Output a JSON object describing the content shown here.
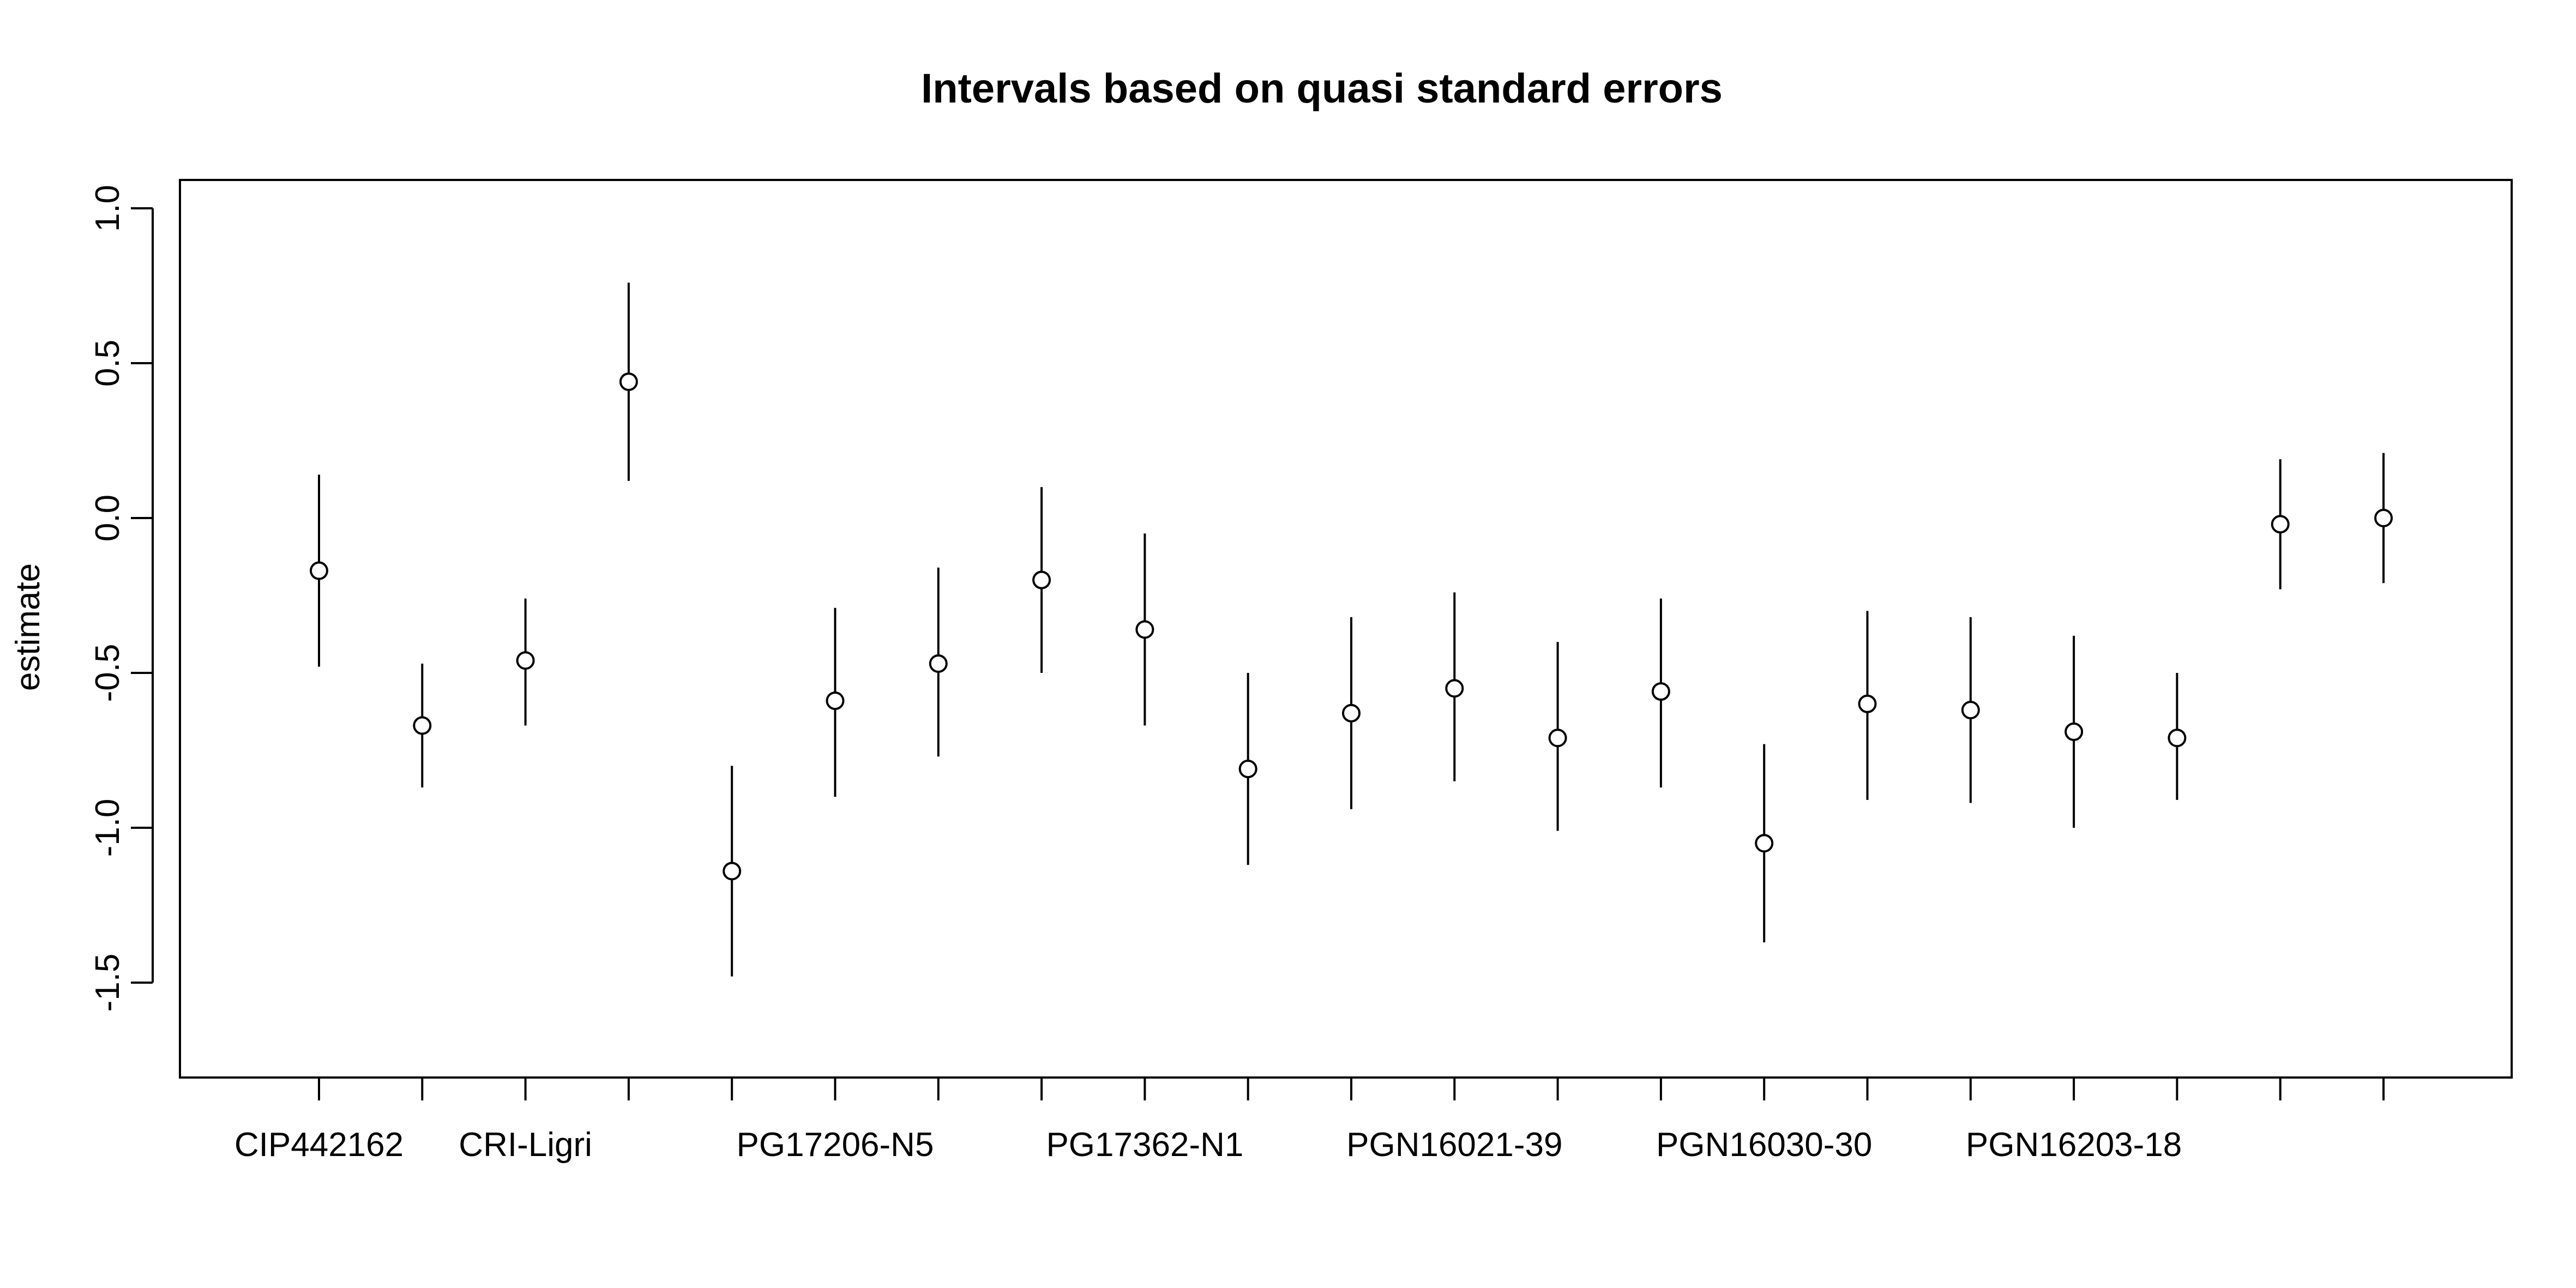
{
  "chart_data": {
    "type": "scatter",
    "title": "Intervals based on quasi standard errors",
    "xlabel": "",
    "ylabel": "estimate",
    "ylim": [
      -1.8,
      1.1
    ],
    "yticks": [
      1.0,
      0.5,
      0.0,
      -0.5,
      -1.0,
      -1.5
    ],
    "ytick_labels": [
      "1.0",
      "0.5",
      "0.0",
      "-0.5",
      "-1.0",
      "-1.5"
    ],
    "grid": false,
    "legend": "none",
    "categories": [
      "CIP442162",
      "",
      "CRI-Ligri",
      "",
      "",
      "PG17206-N5",
      "",
      "",
      "PG17362-N1",
      "",
      "",
      "PGN16021-39",
      "",
      "",
      "PGN16030-30",
      "",
      "",
      "PGN16203-18",
      "",
      "",
      ""
    ],
    "series": [
      {
        "estimate": [
          -0.17,
          -0.67,
          -0.46,
          0.44,
          -1.14,
          -0.59,
          -0.47,
          -0.2,
          -0.36,
          -0.81,
          -0.63,
          -0.55,
          -0.71,
          -0.56,
          -1.05,
          -0.6,
          -0.62,
          -0.69,
          -0.71,
          -0.02,
          0.0
        ],
        "lower": [
          -0.48,
          -0.87,
          -0.67,
          0.12,
          -1.48,
          -0.9,
          -0.77,
          -0.5,
          -0.67,
          -1.12,
          -0.94,
          -0.85,
          -1.01,
          -0.87,
          -1.37,
          -0.91,
          -0.92,
          -1.0,
          -0.91,
          -0.23,
          -0.21
        ],
        "upper": [
          0.14,
          -0.47,
          -0.26,
          0.76,
          -0.8,
          -0.29,
          -0.16,
          0.1,
          -0.05,
          -0.5,
          -0.32,
          -0.24,
          -0.4,
          -0.26,
          -0.73,
          -0.3,
          -0.32,
          -0.38,
          -0.5,
          0.19,
          0.21
        ]
      }
    ]
  }
}
